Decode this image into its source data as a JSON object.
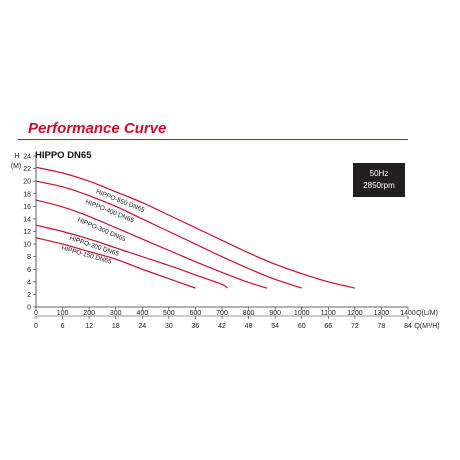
{
  "header": {
    "title": "Performance Curve",
    "model": "HIPPO DN65"
  },
  "spec_box": {
    "frequency": "50Hz",
    "speed": "2850rpm"
  },
  "chart_data": {
    "type": "line",
    "y_axis": {
      "label_top": "H",
      "label_unit": "(M)",
      "ticks": [
        0,
        2,
        4,
        6,
        8,
        10,
        12,
        14,
        16,
        18,
        20,
        22,
        24
      ],
      "ylim": [
        0,
        24
      ]
    },
    "x_axis_primary": {
      "label": "Q(L/M)",
      "ticks": [
        0,
        100,
        200,
        300,
        400,
        500,
        600,
        700,
        800,
        900,
        1000,
        1100,
        1200,
        1300,
        1400
      ],
      "xlim": [
        0,
        1400
      ]
    },
    "x_axis_secondary": {
      "label": "Q(M³/H)",
      "ticks": [
        "0",
        "6",
        "12",
        "18",
        "24",
        "30",
        "36",
        "42",
        "48",
        "54",
        "60",
        "66",
        "72",
        "78",
        "84"
      ]
    },
    "grid": false,
    "line_color": "#c8102e",
    "series": [
      {
        "name": "HIPPO-550 DN65",
        "x": [
          0,
          100,
          200,
          300,
          400,
          500,
          600,
          700,
          800,
          900,
          1000,
          1100,
          1200
        ],
        "y": [
          22.2,
          21.3,
          20.0,
          18.3,
          16.6,
          14.6,
          12.6,
          10.6,
          8.6,
          6.8,
          5.3,
          4.0,
          3.0
        ]
      },
      {
        "name": "HIPPO-400 DN65",
        "x": [
          0,
          100,
          200,
          300,
          400,
          500,
          600,
          700,
          800,
          900,
          1000
        ],
        "y": [
          20.0,
          19.1,
          17.7,
          16.0,
          14.0,
          12.0,
          10.0,
          8.0,
          6.1,
          4.4,
          3.0
        ]
      },
      {
        "name": "HIPPO-300 DN65",
        "x": [
          0,
          100,
          200,
          300,
          400,
          500,
          600,
          700,
          800,
          870
        ],
        "y": [
          17.0,
          15.9,
          14.4,
          12.6,
          10.8,
          9.0,
          7.2,
          5.5,
          3.9,
          3.0
        ]
      },
      {
        "name": "HIPPO-200 DN65",
        "x": [
          0,
          100,
          200,
          300,
          400,
          500,
          600,
          700,
          720
        ],
        "y": [
          13.0,
          12.0,
          10.8,
          9.4,
          8.0,
          6.6,
          5.1,
          3.6,
          3.0
        ]
      },
      {
        "name": "HIPPO-150 DN65",
        "x": [
          0,
          100,
          200,
          300,
          400,
          500,
          600
        ],
        "y": [
          11.0,
          10.0,
          8.8,
          7.6,
          6.0,
          4.5,
          3.0
        ]
      }
    ]
  }
}
